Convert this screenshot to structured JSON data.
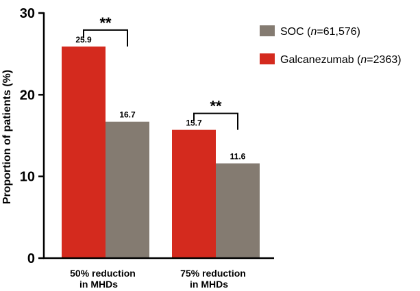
{
  "chart_data": {
    "type": "bar",
    "title": "",
    "ylabel": "Proportion of patients (%)",
    "xlabel": "",
    "ylim": [
      0,
      30
    ],
    "yticks": [
      0,
      10,
      20,
      30
    ],
    "categories": [
      [
        "50% reduction",
        "in MHDs"
      ],
      [
        "75% reduction",
        "in MHDs"
      ]
    ],
    "series": [
      {
        "name": "Galcanezumab",
        "n_label": "n",
        "n_value": "=2363",
        "color": "#d42a1e",
        "values": [
          25.9,
          15.7
        ]
      },
      {
        "name": "SOC",
        "n_label": "n",
        "n_value": "=61,576",
        "color": "#847b71",
        "values": [
          16.7,
          11.6
        ]
      }
    ],
    "data_labels": [
      [
        "25.9",
        "16.7"
      ],
      [
        "15.7",
        "11.6"
      ]
    ],
    "significance": [
      {
        "category_index": 0,
        "text": "**"
      },
      {
        "category_index": 1,
        "text": "**"
      }
    ],
    "legend": {
      "position": "top-right",
      "order": [
        "SOC",
        "Galcanezumab"
      ]
    },
    "grid": false
  }
}
